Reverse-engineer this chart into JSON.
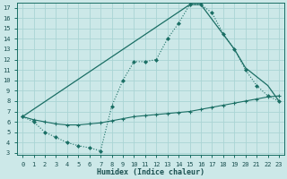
{
  "xlabel": "Humidex (Indice chaleur)",
  "bg_color": "#cce8e8",
  "line_color": "#1a6e64",
  "grid_color": "#aad4d4",
  "xlim": [
    -0.5,
    23.5
  ],
  "ylim": [
    2.8,
    17.5
  ],
  "xticks": [
    0,
    1,
    2,
    3,
    4,
    5,
    6,
    7,
    8,
    9,
    10,
    11,
    12,
    13,
    14,
    15,
    16,
    17,
    18,
    19,
    20,
    21,
    22,
    23
  ],
  "yticks": [
    3,
    4,
    5,
    6,
    7,
    8,
    9,
    10,
    11,
    12,
    13,
    14,
    15,
    16,
    17
  ],
  "line1_x": [
    0,
    1,
    2,
    3,
    4,
    5,
    6,
    7,
    8,
    9,
    10,
    11,
    12,
    13,
    14,
    15,
    16,
    17,
    18,
    19,
    20,
    21,
    22,
    23
  ],
  "line1_y": [
    6.5,
    6.0,
    5.0,
    4.5,
    4.0,
    3.7,
    3.5,
    3.2,
    7.5,
    10.0,
    11.8,
    11.8,
    12.0,
    14.0,
    15.5,
    17.3,
    17.3,
    16.5,
    14.5,
    13.0,
    11.0,
    9.5,
    8.5,
    8.0
  ],
  "line2_x": [
    0,
    15,
    16,
    19,
    20,
    22,
    23
  ],
  "line2_y": [
    6.5,
    17.3,
    17.3,
    13.0,
    11.2,
    9.5,
    8.0
  ],
  "line3_x": [
    0,
    1,
    2,
    3,
    4,
    5,
    6,
    7,
    8,
    9,
    10,
    11,
    12,
    13,
    14,
    15,
    16,
    17,
    18,
    19,
    20,
    21,
    22,
    23
  ],
  "line3_y": [
    6.5,
    6.2,
    6.0,
    5.8,
    5.7,
    5.7,
    5.8,
    5.9,
    6.1,
    6.3,
    6.5,
    6.6,
    6.7,
    6.8,
    6.9,
    7.0,
    7.2,
    7.4,
    7.6,
    7.8,
    8.0,
    8.2,
    8.4,
    8.5
  ]
}
